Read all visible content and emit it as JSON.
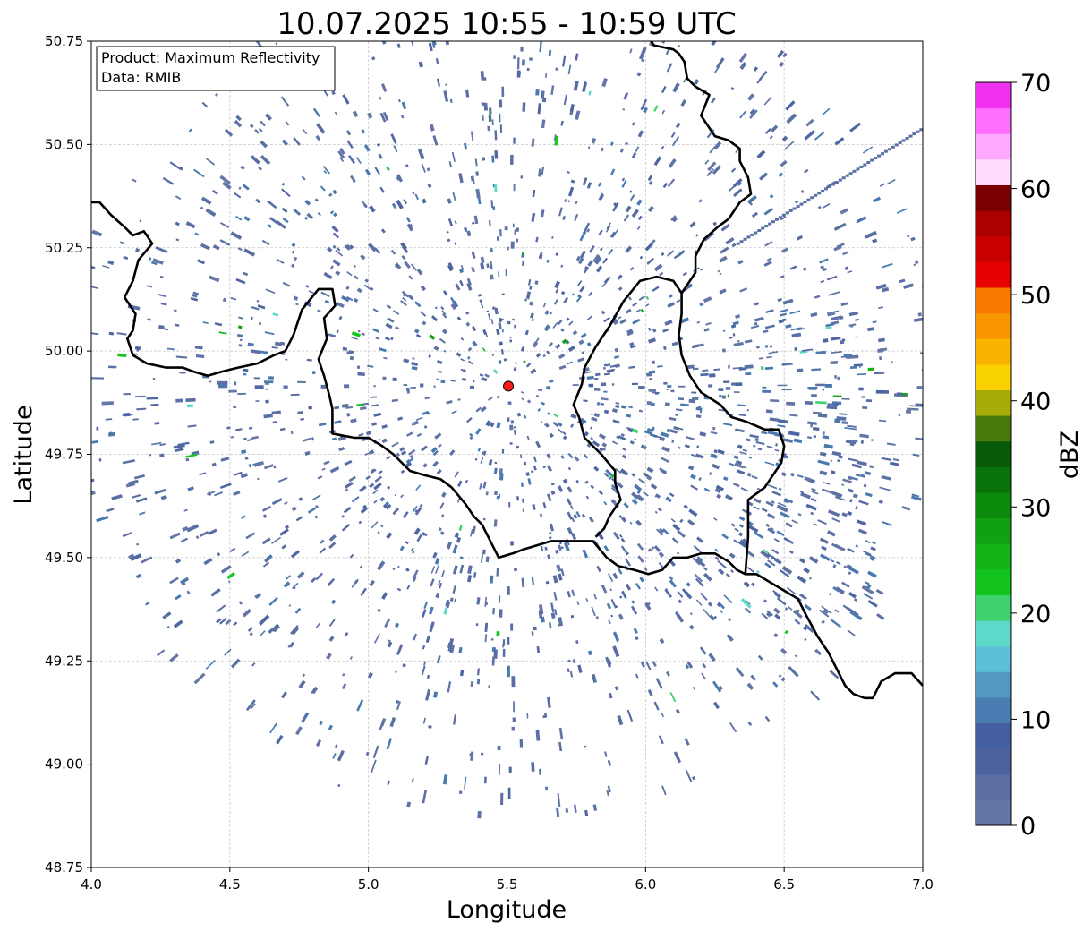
{
  "title": "10.07.2025 10:55 - 10:59 UTC",
  "info_box": {
    "product": "Product: Maximum Reflectivity",
    "data": "Data: RMIB"
  },
  "xlabel": "Longitude",
  "ylabel": "Latitude",
  "colorbar_label": "dBZ",
  "x_ticks": [
    "4.0",
    "4.5",
    "5.0",
    "5.5",
    "6.0",
    "6.5",
    "7.0"
  ],
  "y_ticks": [
    "50.75",
    "50.50",
    "50.25",
    "50.00",
    "49.75",
    "49.50",
    "49.25",
    "49.00",
    "48.75"
  ],
  "colorbar_ticks": [
    "0",
    "10",
    "20",
    "30",
    "40",
    "50",
    "60",
    "70"
  ],
  "chart_data": {
    "type": "heatmap",
    "xlim": [
      4.0,
      7.0
    ],
    "ylim": [
      48.75,
      50.75
    ],
    "x_tick_values": [
      4.0,
      4.5,
      5.0,
      5.5,
      6.0,
      6.5,
      7.0
    ],
    "y_tick_values": [
      50.75,
      50.5,
      50.25,
      50.0,
      49.75,
      49.5,
      49.25,
      49.0,
      48.75
    ],
    "grid": true,
    "colorbar": {
      "min": 0,
      "max": 70,
      "step": 2.5,
      "tick_values": [
        0,
        10,
        20,
        30,
        40,
        50,
        60,
        70
      ],
      "colors": [
        "#6476a6",
        "#5a6ea4",
        "#4e62a0",
        "#4460a2",
        "#4a7eb2",
        "#5298c0",
        "#5ec0d8",
        "#5ed8c8",
        "#3ed26e",
        "#14c41e",
        "#12b418",
        "#10a012",
        "#0c8a0c",
        "#0a720a",
        "#085a08",
        "#4a7a0a",
        "#a8ac08",
        "#fad200",
        "#fab400",
        "#fa9600",
        "#fa7800",
        "#e60000",
        "#c80000",
        "#aa0000",
        "#7a0000",
        "#ffdcff",
        "#ffa8ff",
        "#ff6eff",
        "#f032f0"
      ]
    },
    "radar_site": {
      "lon": 5.505,
      "lat": 49.915
    },
    "borders": [
      [
        [
          4.0,
          50.36
        ],
        [
          4.03,
          50.36
        ],
        [
          4.07,
          50.33
        ],
        [
          4.12,
          50.3
        ],
        [
          4.15,
          50.28
        ],
        [
          4.19,
          50.29
        ],
        [
          4.22,
          50.26
        ],
        [
          4.17,
          50.22
        ],
        [
          4.15,
          50.17
        ],
        [
          4.12,
          50.13
        ],
        [
          4.16,
          50.09
        ],
        [
          4.15,
          50.05
        ],
        [
          4.13,
          50.03
        ],
        [
          4.15,
          49.99
        ],
        [
          4.2,
          49.97
        ],
        [
          4.27,
          49.96
        ],
        [
          4.33,
          49.96
        ],
        [
          4.37,
          49.95
        ],
        [
          4.42,
          49.94
        ],
        [
          4.47,
          49.95
        ],
        [
          4.53,
          49.96
        ],
        [
          4.6,
          49.97
        ],
        [
          4.66,
          49.99
        ],
        [
          4.7,
          50.0
        ],
        [
          4.73,
          50.04
        ],
        [
          4.76,
          50.1
        ],
        [
          4.82,
          50.15
        ],
        [
          4.87,
          50.15
        ],
        [
          4.88,
          50.11
        ],
        [
          4.84,
          50.08
        ],
        [
          4.85,
          50.03
        ],
        [
          4.82,
          49.98
        ],
        [
          4.84,
          49.94
        ],
        [
          4.86,
          49.89
        ],
        [
          4.87,
          49.86
        ],
        [
          4.87,
          49.8
        ],
        [
          4.95,
          49.79
        ],
        [
          5.0,
          49.79
        ],
        [
          5.05,
          49.77
        ],
        [
          5.09,
          49.75
        ],
        [
          5.15,
          49.71
        ],
        [
          5.2,
          49.7
        ],
        [
          5.26,
          49.69
        ],
        [
          5.3,
          49.67
        ],
        [
          5.35,
          49.63
        ],
        [
          5.38,
          49.6
        ],
        [
          5.41,
          49.58
        ],
        [
          5.44,
          49.54
        ],
        [
          5.47,
          49.5
        ],
        [
          5.52,
          49.51
        ],
        [
          5.56,
          49.52
        ],
        [
          5.61,
          49.53
        ],
        [
          5.66,
          49.54
        ],
        [
          5.7,
          49.54
        ]
      ],
      [
        [
          5.7,
          49.54
        ],
        [
          5.76,
          49.54
        ],
        [
          5.81,
          49.54
        ],
        [
          5.86,
          49.5
        ],
        [
          5.9,
          49.48
        ],
        [
          5.96,
          49.47
        ],
        [
          6.01,
          49.46
        ],
        [
          6.06,
          49.47
        ],
        [
          6.1,
          49.5
        ],
        [
          6.15,
          49.5
        ],
        [
          6.2,
          49.51
        ],
        [
          6.25,
          49.51
        ],
        [
          6.3,
          49.49
        ],
        [
          6.33,
          49.47
        ],
        [
          6.36,
          49.46
        ],
        [
          6.4,
          49.46
        ],
        [
          6.45,
          49.44
        ],
        [
          6.5,
          49.42
        ],
        [
          6.55,
          49.4
        ],
        [
          6.58,
          49.36
        ],
        [
          6.62,
          49.31
        ],
        [
          6.66,
          49.27
        ],
        [
          6.69,
          49.23
        ],
        [
          6.72,
          49.19
        ],
        [
          6.75,
          49.17
        ],
        [
          6.79,
          49.16
        ],
        [
          6.82,
          49.16
        ],
        [
          6.85,
          49.2
        ],
        [
          6.9,
          49.22
        ],
        [
          6.96,
          49.22
        ],
        [
          7.0,
          49.19
        ]
      ],
      [
        [
          5.82,
          49.55
        ],
        [
          5.85,
          49.57
        ],
        [
          5.87,
          49.6
        ],
        [
          5.91,
          49.64
        ],
        [
          5.89,
          49.68
        ],
        [
          5.89,
          49.71
        ],
        [
          5.84,
          49.75
        ],
        [
          5.78,
          49.79
        ],
        [
          5.76,
          49.84
        ],
        [
          5.74,
          49.87
        ],
        [
          5.77,
          49.92
        ],
        [
          5.78,
          49.96
        ],
        [
          5.82,
          50.01
        ],
        [
          5.87,
          50.06
        ],
        [
          5.92,
          50.12
        ],
        [
          5.98,
          50.17
        ],
        [
          6.04,
          50.18
        ],
        [
          6.1,
          50.17
        ],
        [
          6.13,
          50.14
        ],
        [
          6.13,
          50.09
        ],
        [
          6.12,
          50.04
        ],
        [
          6.13,
          49.99
        ],
        [
          6.16,
          49.94
        ],
        [
          6.2,
          49.9
        ],
        [
          6.27,
          49.87
        ],
        [
          6.31,
          49.84
        ],
        [
          6.36,
          49.83
        ],
        [
          6.43,
          49.81
        ],
        [
          6.48,
          49.81
        ],
        [
          6.5,
          49.77
        ],
        [
          6.49,
          49.73
        ],
        [
          6.43,
          49.67
        ],
        [
          6.37,
          49.64
        ],
        [
          6.37,
          49.59
        ],
        [
          6.37,
          49.55
        ],
        [
          6.36,
          49.46
        ]
      ],
      [
        [
          6.13,
          50.14
        ],
        [
          6.18,
          50.19
        ],
        [
          6.18,
          50.23
        ],
        [
          6.21,
          50.27
        ],
        [
          6.26,
          50.3
        ],
        [
          6.3,
          50.32
        ],
        [
          6.34,
          50.36
        ],
        [
          6.38,
          50.38
        ],
        [
          6.37,
          50.42
        ],
        [
          6.34,
          50.46
        ],
        [
          6.34,
          50.49
        ],
        [
          6.3,
          50.51
        ],
        [
          6.25,
          50.52
        ],
        [
          6.22,
          50.55
        ],
        [
          6.2,
          50.57
        ],
        [
          6.23,
          50.62
        ],
        [
          6.18,
          50.64
        ],
        [
          6.15,
          50.66
        ],
        [
          6.14,
          50.7
        ],
        [
          6.12,
          50.72
        ],
        [
          6.1,
          50.73
        ],
        [
          6.03,
          50.74
        ],
        [
          6.01,
          50.76
        ]
      ]
    ],
    "echo_field": {
      "center": {
        "lon": 5.505,
        "lat": 49.915
      },
      "max_range_deg_lon": 1.6,
      "dominant_dbz_range": [
        0,
        10
      ],
      "dense_region_extends_to": {
        "lon": 6.7,
        "lat": 49.28
      },
      "sparse_green_echoes_dbz": [
        15,
        35
      ],
      "spoke_to_northeast": true
    }
  }
}
